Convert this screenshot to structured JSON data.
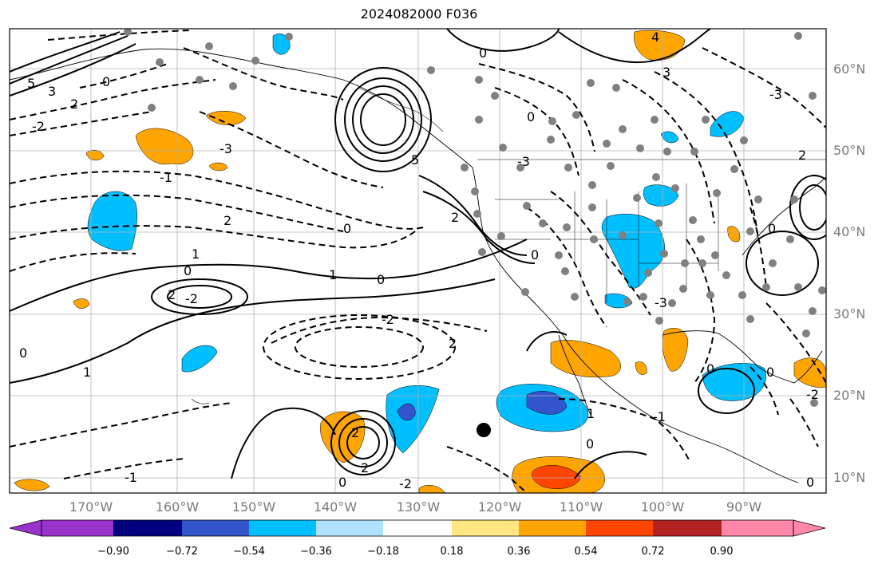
{
  "title": "2024082000 F036",
  "lat_labels": [
    "60°N",
    "50°N",
    "40°N",
    "30°N",
    "20°N",
    "10°N"
  ],
  "lon_labels": [
    "170°W",
    "160°W",
    "150°W",
    "140°W",
    "130°W",
    "120°W",
    "110°W",
    "100°W",
    "90°W"
  ],
  "colorbar": {
    "ticks": [
      "−0.90",
      "−0.72",
      "−0.54",
      "−0.36",
      "−0.18",
      "0.18",
      "0.36",
      "0.54",
      "0.72",
      "0.90"
    ],
    "colors": [
      "#9933cc",
      "#000080",
      "#3355cc",
      "#00bfff",
      "#b0e2ff",
      "#ffffff",
      "#ffe680",
      "#ffa500",
      "#ff4500",
      "#b22222",
      "#ff88aa"
    ]
  },
  "contour_labels": [
    "5",
    "3",
    "2",
    "0",
    "-2",
    "-3",
    "1",
    "-1",
    "2",
    "0",
    "-2",
    "5",
    "2",
    "0",
    "-3",
    "-2",
    "0",
    "1",
    "2",
    "-2",
    "2",
    "0",
    "-1",
    "2",
    "1",
    "0",
    "-2",
    "-1",
    "-2",
    "4",
    "3",
    "-3",
    "0",
    "2"
  ],
  "marker_colors": {
    "station": "#808080",
    "point": "#000000",
    "land_line": "#000000"
  }
}
